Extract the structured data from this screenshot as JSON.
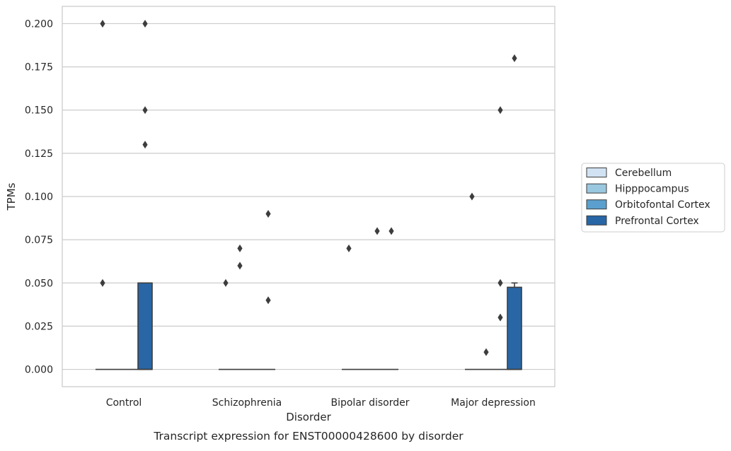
{
  "chart_data": {
    "type": "box",
    "title": "",
    "xlabel": "Disorder",
    "ylabel": "TPMs",
    "caption": "Transcript expression for ENST00000428600 by disorder",
    "categories": [
      "Control",
      "Schizophrenia",
      "Bipolar disorder",
      "Major depression"
    ],
    "ylim": [
      -0.01,
      0.21
    ],
    "yticks": [
      "0.000",
      "0.025",
      "0.050",
      "0.075",
      "0.100",
      "0.125",
      "0.150",
      "0.175",
      "0.200"
    ],
    "grid": true,
    "legend_position": "right",
    "series": [
      {
        "name": "Cerebellum",
        "color": "#d1e2f2",
        "boxes": [
          {
            "q1": 0,
            "median": 0,
            "q3": 0,
            "whisker_low": 0,
            "whisker_high": 0,
            "outliers": [
              0.05,
              0.2
            ]
          },
          {
            "q1": 0,
            "median": 0,
            "q3": 0,
            "whisker_low": 0,
            "whisker_high": 0,
            "outliers": [
              0.05
            ]
          },
          {
            "q1": 0,
            "median": 0,
            "q3": 0,
            "whisker_low": 0,
            "whisker_high": 0,
            "outliers": [
              0.07
            ]
          },
          {
            "q1": 0,
            "median": 0,
            "q3": 0,
            "whisker_low": 0,
            "whisker_high": 0,
            "outliers": [
              0.1
            ]
          }
        ]
      },
      {
        "name": "Hipppocampus",
        "color": "#9ac8e0",
        "boxes": [
          {
            "q1": 0,
            "median": 0,
            "q3": 0,
            "whisker_low": 0,
            "whisker_high": 0,
            "outliers": []
          },
          {
            "q1": 0,
            "median": 0,
            "q3": 0,
            "whisker_low": 0,
            "whisker_high": 0,
            "outliers": [
              0.06,
              0.07
            ]
          },
          {
            "q1": 0,
            "median": 0,
            "q3": 0,
            "whisker_low": 0,
            "whisker_high": 0,
            "outliers": []
          },
          {
            "q1": 0,
            "median": 0,
            "q3": 0,
            "whisker_low": 0,
            "whisker_high": 0,
            "outliers": [
              0.01
            ]
          }
        ]
      },
      {
        "name": "Orbitofontal Cortex",
        "color": "#5a9fcd",
        "boxes": [
          {
            "q1": 0,
            "median": 0,
            "q3": 0,
            "whisker_low": 0,
            "whisker_high": 0,
            "outliers": []
          },
          {
            "q1": 0,
            "median": 0,
            "q3": 0,
            "whisker_low": 0,
            "whisker_high": 0,
            "outliers": []
          },
          {
            "q1": 0,
            "median": 0,
            "q3": 0,
            "whisker_low": 0,
            "whisker_high": 0,
            "outliers": [
              0.08
            ]
          },
          {
            "q1": 0,
            "median": 0,
            "q3": 0,
            "whisker_low": 0,
            "whisker_high": 0,
            "outliers": [
              0.03,
              0.05,
              0.15
            ]
          }
        ]
      },
      {
        "name": "Prefrontal Cortex",
        "color": "#2866a6",
        "boxes": [
          {
            "q1": 0,
            "median": 0,
            "q3": 0.05,
            "whisker_low": 0,
            "whisker_high": 0.05,
            "outliers": [
              0.13,
              0.15,
              0.2
            ]
          },
          {
            "q1": 0,
            "median": 0,
            "q3": 0,
            "whisker_low": 0,
            "whisker_high": 0,
            "outliers": [
              0.04,
              0.09
            ]
          },
          {
            "q1": 0,
            "median": 0,
            "q3": 0,
            "whisker_low": 0,
            "whisker_high": 0,
            "outliers": [
              0.08
            ]
          },
          {
            "q1": 0,
            "median": 0,
            "q3": 0.0475,
            "whisker_low": 0,
            "whisker_high": 0.05,
            "outliers": [
              0.18
            ]
          }
        ]
      }
    ]
  }
}
